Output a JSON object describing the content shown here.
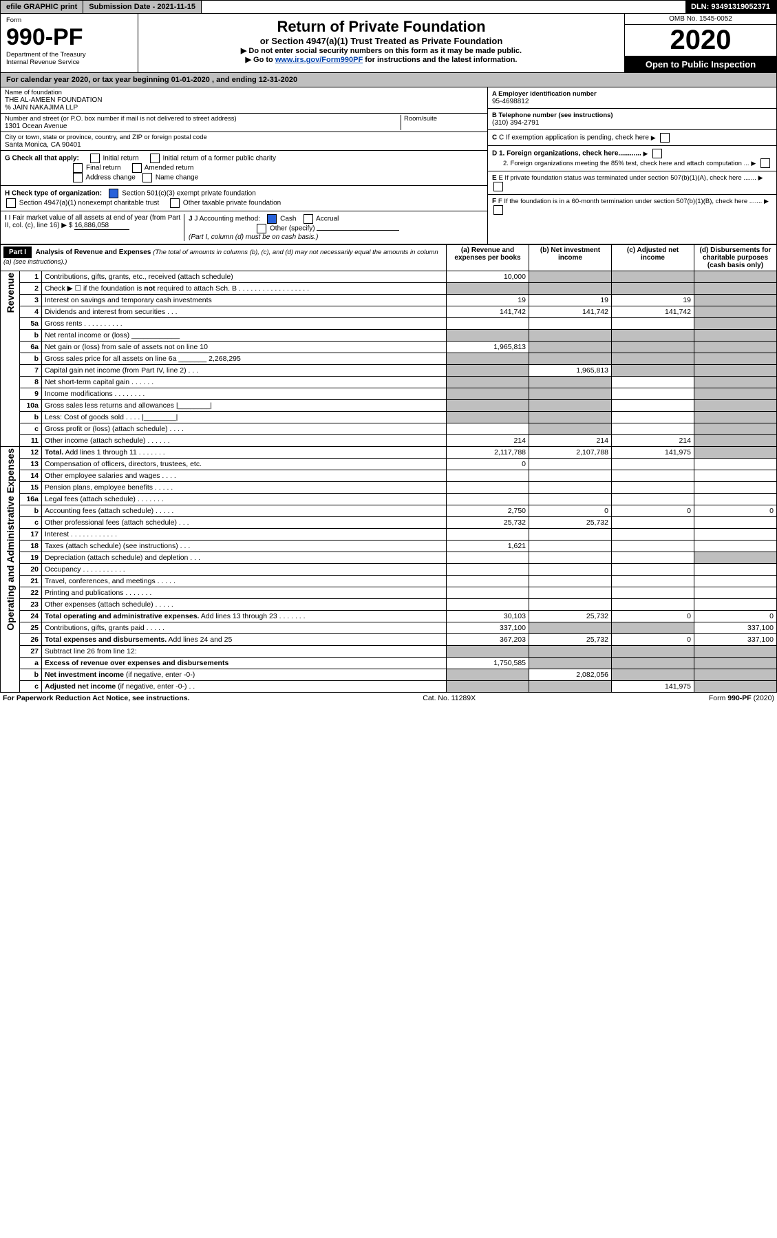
{
  "top": {
    "efile": "efile GRAPHIC print",
    "sub_date_lbl": "Submission Date - 2021-11-15",
    "dln": "DLN: 93491319052371"
  },
  "header": {
    "form_word": "Form",
    "form_no": "990-PF",
    "dept": "Department of the Treasury",
    "irs": "Internal Revenue Service",
    "title": "Return of Private Foundation",
    "subtitle": "or Section 4947(a)(1) Trust Treated as Private Foundation",
    "inst1": "▶ Do not enter social security numbers on this form as it may be made public.",
    "inst2_pre": "▶ Go to ",
    "inst2_link": "www.irs.gov/Form990PF",
    "inst2_post": " for instructions and the latest information.",
    "omb": "OMB No. 1545-0052",
    "year": "2020",
    "open": "Open to Public Inspection"
  },
  "cal_year": "For calendar year 2020, or tax year beginning 01-01-2020              , and ending 12-31-2020",
  "foundation": {
    "name_lbl": "Name of foundation",
    "name": "THE AL-AMEEN FOUNDATION",
    "co": "% JAIN NAKAJIMA LLP",
    "addr_lbl": "Number and street (or P.O. box number if mail is not delivered to street address)",
    "addr": "1301 Ocean Avenue",
    "room_lbl": "Room/suite",
    "city_lbl": "City or town, state or province, country, and ZIP or foreign postal code",
    "city": "Santa Monica, CA  90401",
    "ein_lbl": "A Employer identification number",
    "ein": "95-4698812",
    "phone_lbl": "B Telephone number (see instructions)",
    "phone": "(310) 394-2791",
    "c_lbl": "C If exemption application is pending, check here"
  },
  "checks": {
    "g_lbl": "G Check all that apply:",
    "g_initial": "Initial return",
    "g_initial_pub": "Initial return of a former public charity",
    "g_final": "Final return",
    "g_amended": "Amended return",
    "g_addr": "Address change",
    "g_name": "Name change",
    "h_lbl": "H Check type of organization:",
    "h_501c3": "Section 501(c)(3) exempt private foundation",
    "h_4947": "Section 4947(a)(1) nonexempt charitable trust",
    "h_other_tax": "Other taxable private foundation",
    "i_lbl": "I Fair market value of all assets at end of year (from Part II, col. (c), line 16)",
    "i_val": "16,886,058",
    "j_lbl": "J Accounting method:",
    "j_cash": "Cash",
    "j_accrual": "Accrual",
    "j_other": "Other (specify)",
    "j_note": "(Part I, column (d) must be on cash basis.)",
    "d1": "D 1. Foreign organizations, check here............",
    "d2": "2. Foreign organizations meeting the 85% test, check here and attach computation ...",
    "e_lbl": "E  If private foundation status was terminated under section 507(b)(1)(A), check here .......",
    "f_lbl": "F  If the foundation is in a 60-month termination under section 507(b)(1)(B), check here .......",
    "dollar": "▶ $"
  },
  "part1": {
    "hdr": "Part I",
    "title": "Analysis of Revenue and Expenses",
    "title_note": "(The total of amounts in columns (b), (c), and (d) may not necessarily equal the amounts in column (a) (see instructions).)",
    "col_a": "(a)  Revenue and expenses per books",
    "col_b": "(b)  Net investment income",
    "col_c": "(c)  Adjusted net income",
    "col_d": "(d)  Disbursements for charitable purposes (cash basis only)"
  },
  "sides": {
    "revenue": "Revenue",
    "opex": "Operating and Administrative Expenses"
  },
  "rows": [
    {
      "n": "1",
      "lbl": "Contributions, gifts, grants, etc., received (attach schedule)",
      "a": "10,000",
      "b": "",
      "c": "",
      "d": "",
      "sh": [
        "b",
        "c",
        "d"
      ]
    },
    {
      "n": "2",
      "lbl": "Check ▶ ☐ if the foundation is <b>not</b> required to attach Sch. B  . . . . . . . . . . . . . . . . . .",
      "a": "",
      "b": "",
      "c": "",
      "d": "",
      "sh": [
        "a",
        "b",
        "c",
        "d"
      ]
    },
    {
      "n": "3",
      "lbl": "Interest on savings and temporary cash investments",
      "a": "19",
      "b": "19",
      "c": "19",
      "d": "",
      "sh": [
        "d"
      ]
    },
    {
      "n": "4",
      "lbl": "Dividends and interest from securities   .   .   .",
      "a": "141,742",
      "b": "141,742",
      "c": "141,742",
      "d": "",
      "sh": [
        "d"
      ]
    },
    {
      "n": "5a",
      "lbl": "Gross rents   .   .   .   .   .   .   .   .   .   .",
      "a": "",
      "b": "",
      "c": "",
      "d": "",
      "sh": [
        "d"
      ]
    },
    {
      "n": "b",
      "lbl": "Net rental income or (loss)  ____________",
      "a": "",
      "b": "",
      "c": "",
      "d": "",
      "sh": [
        "a",
        "b",
        "c",
        "d"
      ]
    },
    {
      "n": "6a",
      "lbl": "Net gain or (loss) from sale of assets not on line 10",
      "a": "1,965,813",
      "b": "",
      "c": "",
      "d": "",
      "sh": [
        "b",
        "c",
        "d"
      ]
    },
    {
      "n": "b",
      "lbl": "Gross sales price for all assets on line 6a _______ 2,268,295",
      "a": "",
      "b": "",
      "c": "",
      "d": "",
      "sh": [
        "a",
        "b",
        "c",
        "d"
      ]
    },
    {
      "n": "7",
      "lbl": "Capital gain net income (from Part IV, line 2)   .   .   .",
      "a": "",
      "b": "1,965,813",
      "c": "",
      "d": "",
      "sh": [
        "a",
        "c",
        "d"
      ]
    },
    {
      "n": "8",
      "lbl": "Net short-term capital gain   .   .   .   .   .   .",
      "a": "",
      "b": "",
      "c": "",
      "d": "",
      "sh": [
        "a",
        "b",
        "d"
      ]
    },
    {
      "n": "9",
      "lbl": "Income modifications .   .   .   .   .   .   .   .",
      "a": "",
      "b": "",
      "c": "",
      "d": "",
      "sh": [
        "a",
        "b",
        "d"
      ]
    },
    {
      "n": "10a",
      "lbl": "Gross sales less returns and allowances  |________|",
      "a": "",
      "b": "",
      "c": "",
      "d": "",
      "sh": [
        "a",
        "b",
        "d"
      ]
    },
    {
      "n": "b",
      "lbl": "Less: Cost of goods sold   .   .   .   .   |________|",
      "a": "",
      "b": "",
      "c": "",
      "d": "",
      "sh": [
        "a",
        "b",
        "d"
      ]
    },
    {
      "n": "c",
      "lbl": "Gross profit or (loss) (attach schedule)   .   .   .   .",
      "a": "",
      "b": "",
      "c": "",
      "d": "",
      "sh": [
        "b",
        "d"
      ]
    },
    {
      "n": "11",
      "lbl": "Other income (attach schedule)   .   .   .   .   .   .",
      "a": "214",
      "b": "214",
      "c": "214",
      "d": "",
      "sh": [
        "d"
      ]
    },
    {
      "n": "12",
      "lbl": "<b>Total.</b> Add lines 1 through 11   .   .   .   .   .   .   .",
      "a": "2,117,788",
      "b": "2,107,788",
      "c": "141,975",
      "d": "",
      "sh": [
        "d"
      ]
    },
    {
      "n": "13",
      "lbl": "Compensation of officers, directors, trustees, etc.",
      "a": "0",
      "b": "",
      "c": "",
      "d": "",
      "sh": []
    },
    {
      "n": "14",
      "lbl": "Other employee salaries and wages   .   .   .   .",
      "a": "",
      "b": "",
      "c": "",
      "d": "",
      "sh": []
    },
    {
      "n": "15",
      "lbl": "Pension plans, employee benefits .   .   .   .   .",
      "a": "",
      "b": "",
      "c": "",
      "d": "",
      "sh": []
    },
    {
      "n": "16a",
      "lbl": "Legal fees (attach schedule) .   .   .   .   .   .   .",
      "a": "",
      "b": "",
      "c": "",
      "d": "",
      "sh": []
    },
    {
      "n": "b",
      "lbl": "Accounting fees (attach schedule) .   .   .   .   .",
      "a": "2,750",
      "b": "0",
      "c": "0",
      "d": "0",
      "sh": []
    },
    {
      "n": "c",
      "lbl": "Other professional fees (attach schedule)   .   .   .",
      "a": "25,732",
      "b": "25,732",
      "c": "",
      "d": "",
      "sh": []
    },
    {
      "n": "17",
      "lbl": "Interest .   .   .   .   .   .   .   .   .   .   .   .",
      "a": "",
      "b": "",
      "c": "",
      "d": "",
      "sh": []
    },
    {
      "n": "18",
      "lbl": "Taxes (attach schedule) (see instructions)   .   .   .",
      "a": "1,621",
      "b": "",
      "c": "",
      "d": "",
      "sh": []
    },
    {
      "n": "19",
      "lbl": "Depreciation (attach schedule) and depletion   .   .   .",
      "a": "",
      "b": "",
      "c": "",
      "d": "",
      "sh": [
        "d"
      ]
    },
    {
      "n": "20",
      "lbl": "Occupancy .   .   .   .   .   .   .   .   .   .   .",
      "a": "",
      "b": "",
      "c": "",
      "d": "",
      "sh": []
    },
    {
      "n": "21",
      "lbl": "Travel, conferences, and meetings .   .   .   .   .",
      "a": "",
      "b": "",
      "c": "",
      "d": "",
      "sh": []
    },
    {
      "n": "22",
      "lbl": "Printing and publications .   .   .   .   .   .   .",
      "a": "",
      "b": "",
      "c": "",
      "d": "",
      "sh": []
    },
    {
      "n": "23",
      "lbl": "Other expenses (attach schedule) .   .   .   .   .",
      "a": "",
      "b": "",
      "c": "",
      "d": "",
      "sh": []
    },
    {
      "n": "24",
      "lbl": "<b>Total operating and administrative expenses.</b> Add lines 13 through 23   .   .   .   .   .   .   .",
      "a": "30,103",
      "b": "25,732",
      "c": "0",
      "d": "0",
      "sh": []
    },
    {
      "n": "25",
      "lbl": "Contributions, gifts, grants paid   .   .   .   .   .",
      "a": "337,100",
      "b": "",
      "c": "",
      "d": "337,100",
      "sh": [
        "b",
        "c"
      ]
    },
    {
      "n": "26",
      "lbl": "<b>Total expenses and disbursements.</b> Add lines 24 and 25",
      "a": "367,203",
      "b": "25,732",
      "c": "0",
      "d": "337,100",
      "sh": []
    },
    {
      "n": "27",
      "lbl": "Subtract line 26 from line 12:",
      "a": "",
      "b": "",
      "c": "",
      "d": "",
      "sh": [
        "a",
        "b",
        "c",
        "d"
      ]
    },
    {
      "n": "a",
      "lbl": "<b>Excess of revenue over expenses and disbursements</b>",
      "a": "1,750,585",
      "b": "",
      "c": "",
      "d": "",
      "sh": [
        "b",
        "c",
        "d"
      ]
    },
    {
      "n": "b",
      "lbl": "<b>Net investment income</b> (if negative, enter -0-)",
      "a": "",
      "b": "2,082,056",
      "c": "",
      "d": "",
      "sh": [
        "a",
        "c",
        "d"
      ]
    },
    {
      "n": "c",
      "lbl": "<b>Adjusted net income</b> (if negative, enter -0-)   .   .",
      "a": "",
      "b": "",
      "c": "141,975",
      "d": "",
      "sh": [
        "a",
        "b",
        "d"
      ]
    }
  ],
  "footer": {
    "left": "For Paperwork Reduction Act Notice, see instructions.",
    "mid": "Cat. No. 11289X",
    "right": "Form 990-PF (2020)"
  }
}
